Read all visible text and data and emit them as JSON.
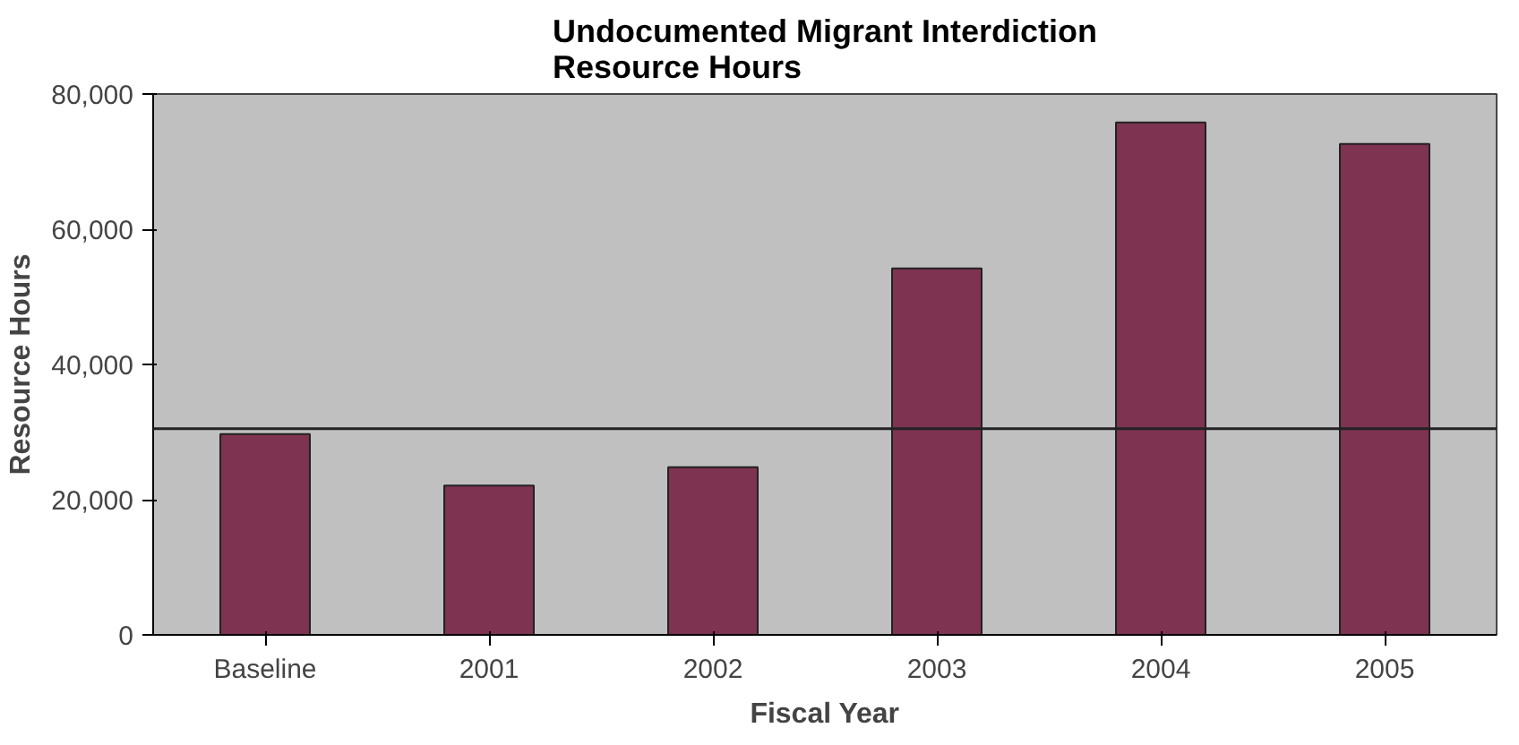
{
  "chart_data": {
    "type": "bar",
    "title": "Undocumented Migrant Interdiction\nResource Hours",
    "xlabel": "Fiscal Year",
    "ylabel": "Resource Hours",
    "categories": [
      "Baseline",
      "2001",
      "2002",
      "2003",
      "2004",
      "2005"
    ],
    "values": [
      29700,
      22100,
      24800,
      54200,
      75800,
      72600
    ],
    "color": "#7e3350",
    "ylim": [
      0,
      80000
    ],
    "yticks": [
      {
        "value": 0,
        "label": "0"
      },
      {
        "value": 20000,
        "label": "20,000"
      },
      {
        "value": 40000,
        "label": "40,000"
      },
      {
        "value": 60000,
        "label": "60,000"
      },
      {
        "value": 80000,
        "label": "80,000"
      }
    ],
    "grid": false,
    "ref_lines": [
      {
        "axis": "y",
        "value": 30500,
        "color": "#222222",
        "line_style": "solid"
      }
    ]
  }
}
